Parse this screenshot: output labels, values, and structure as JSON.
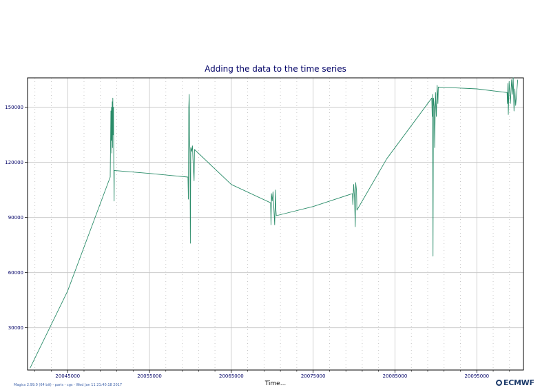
{
  "chart_data": {
    "type": "line",
    "title": "Adding the data to the time series",
    "xlabel": "Time...",
    "ylabel": "",
    "xlim": [
      20040100,
      20100700
    ],
    "ylim": [
      7000,
      166000
    ],
    "x_ticks": [
      20045000,
      20055000,
      20065000,
      20075000,
      20085000,
      20095000
    ],
    "y_ticks": [
      30000,
      60000,
      90000,
      120000,
      150000
    ],
    "grid": true,
    "legend": "none",
    "series_color": "#2a8c69",
    "series": [
      {
        "values": [
          [
            20040400,
            8000
          ],
          [
            20045000,
            50000
          ],
          [
            20050200,
            112000
          ],
          [
            20050280,
            148000
          ],
          [
            20050320,
            132000
          ],
          [
            20050360,
            150000
          ],
          [
            20050400,
            125000
          ],
          [
            20050440,
            153000
          ],
          [
            20050480,
            128000
          ],
          [
            20050520,
            155000
          ],
          [
            20050560,
            135000
          ],
          [
            20050600,
            150000
          ],
          [
            20050640,
            118000
          ],
          [
            20050680,
            99000
          ],
          [
            20050700,
            115600
          ],
          [
            20055000,
            114000
          ],
          [
            20059700,
            112000
          ],
          [
            20059750,
            100000
          ],
          [
            20059800,
            150000
          ],
          [
            20059850,
            157000
          ],
          [
            20059900,
            135000
          ],
          [
            20059950,
            125000
          ],
          [
            20060000,
            76000
          ],
          [
            20060050,
            128000
          ],
          [
            20060150,
            126000
          ],
          [
            20060250,
            129000
          ],
          [
            20060350,
            118000
          ],
          [
            20060450,
            110000
          ],
          [
            20060500,
            127000
          ],
          [
            20065000,
            108000
          ],
          [
            20069800,
            98000
          ],
          [
            20069850,
            86000
          ],
          [
            20069900,
            103000
          ],
          [
            20070000,
            99000
          ],
          [
            20070100,
            104000
          ],
          [
            20070200,
            95000
          ],
          [
            20070300,
            86000
          ],
          [
            20070400,
            105000
          ],
          [
            20070450,
            94000
          ],
          [
            20070500,
            91000
          ],
          [
            20075000,
            96000
          ],
          [
            20079800,
            103000
          ],
          [
            20079850,
            97000
          ],
          [
            20079950,
            108000
          ],
          [
            20080050,
            101000
          ],
          [
            20080150,
            85000
          ],
          [
            20080200,
            109000
          ],
          [
            20080300,
            105000
          ],
          [
            20080350,
            94000
          ],
          [
            20084000,
            122000
          ],
          [
            20089500,
            155000
          ],
          [
            20089550,
            145000
          ],
          [
            20089600,
            157000
          ],
          [
            20089650,
            69000
          ],
          [
            20089700,
            155000
          ],
          [
            20089800,
            150000
          ],
          [
            20089850,
            128000
          ],
          [
            20089950,
            158000
          ],
          [
            20090050,
            145000
          ],
          [
            20090150,
            162000
          ],
          [
            20090250,
            152000
          ],
          [
            20090300,
            161000
          ],
          [
            20095000,
            160000
          ],
          [
            20098700,
            158000
          ],
          [
            20098750,
            152000
          ],
          [
            20098800,
            163000
          ],
          [
            20098850,
            146000
          ],
          [
            20098950,
            164000
          ],
          [
            20099100,
            152000
          ],
          [
            20099250,
            165000
          ],
          [
            20099350,
            157000
          ],
          [
            20099450,
            166000
          ],
          [
            20099550,
            148000
          ],
          [
            20099650,
            160000
          ],
          [
            20099750,
            151000
          ],
          [
            20100000,
            165000
          ]
        ]
      }
    ]
  },
  "footer": {
    "text": "Magics 2.99.0 (64 bit) - paris - cgs - Wed Jan 11 21:40:18 2017",
    "logo": "ECMWF"
  }
}
